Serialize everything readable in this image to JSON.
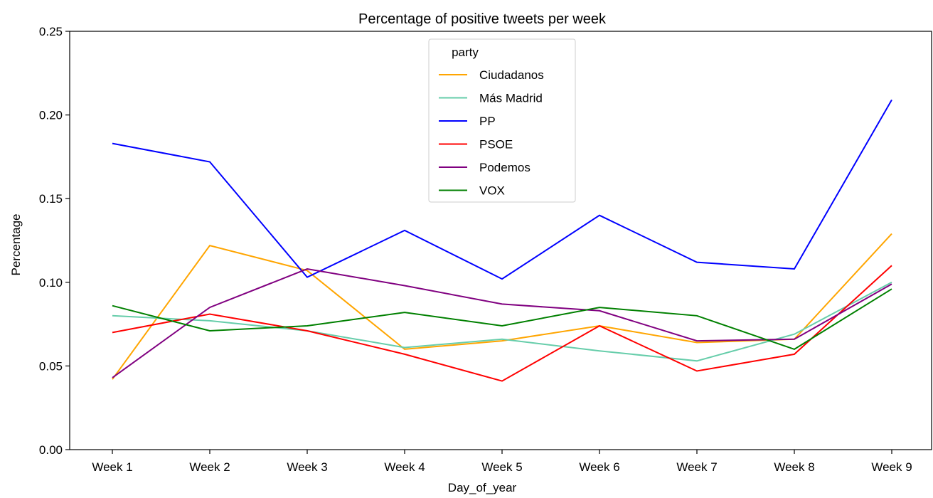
{
  "chart_data": {
    "type": "line",
    "title": "Percentage of positive tweets per week",
    "xlabel": "Day_of_year",
    "ylabel": "Percentage",
    "categories": [
      "Week 1",
      "Week 2",
      "Week 3",
      "Week 4",
      "Week 5",
      "Week 6",
      "Week 7",
      "Week 8",
      "Week 9"
    ],
    "ylim": [
      0,
      0.25
    ],
    "yticks": [
      "0.00",
      "0.05",
      "0.10",
      "0.15",
      "0.20",
      "0.25"
    ],
    "grid": false,
    "legend": {
      "title": "party",
      "placement": "upper center"
    },
    "series": [
      {
        "name": "Ciudadanos",
        "color": "#FFA500",
        "values": [
          0.042,
          0.122,
          0.107,
          0.06,
          0.065,
          0.074,
          0.064,
          0.066,
          0.129
        ]
      },
      {
        "name": "Más Madrid",
        "color": "#66CDAA",
        "values": [
          0.08,
          0.077,
          0.071,
          0.061,
          0.066,
          0.059,
          0.053,
          0.069,
          0.1
        ]
      },
      {
        "name": "PP",
        "color": "#0000FF",
        "values": [
          0.183,
          0.172,
          0.103,
          0.131,
          0.102,
          0.14,
          0.112,
          0.108,
          0.209
        ]
      },
      {
        "name": "PSOE",
        "color": "#FF0000",
        "values": [
          0.07,
          0.081,
          0.071,
          0.057,
          0.041,
          0.074,
          0.047,
          0.057,
          0.11
        ]
      },
      {
        "name": "Podemos",
        "color": "#800080",
        "values": [
          0.043,
          0.085,
          0.108,
          0.098,
          0.087,
          0.083,
          0.065,
          0.066,
          0.099
        ]
      },
      {
        "name": "VOX",
        "color": "#008000",
        "values": [
          0.086,
          0.071,
          0.074,
          0.082,
          0.074,
          0.085,
          0.08,
          0.06,
          0.096
        ]
      }
    ]
  }
}
